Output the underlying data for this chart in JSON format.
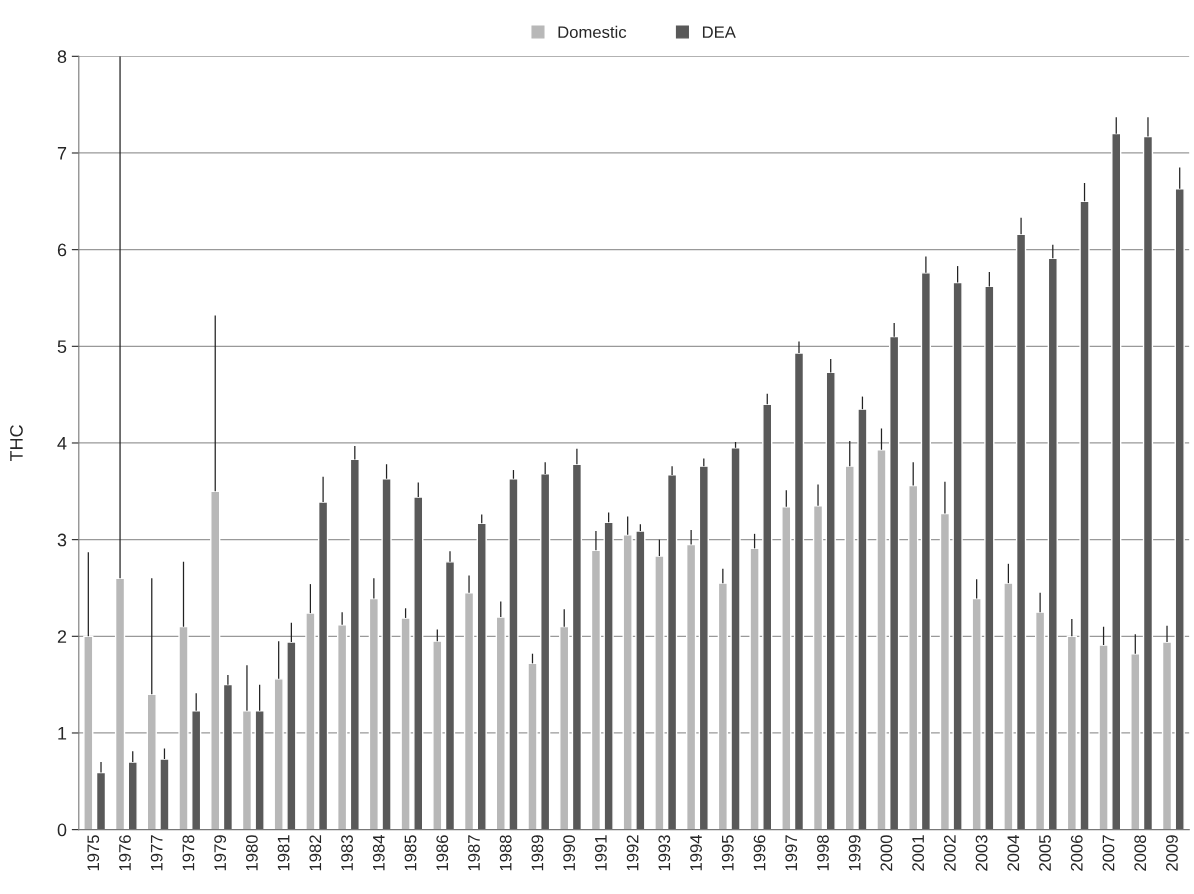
{
  "chart_data": {
    "type": "bar",
    "ylabel": "THC",
    "categories": [
      "1975",
      "1976",
      "1977",
      "1978",
      "1979",
      "1980",
      "1981",
      "1982",
      "1983",
      "1984",
      "1985",
      "1986",
      "1987",
      "1988",
      "1989",
      "1990",
      "1991",
      "1992",
      "1993",
      "1994",
      "1995",
      "1996",
      "1997",
      "1998",
      "1999",
      "2000",
      "2001",
      "2002",
      "2003",
      "2004",
      "2005",
      "2006",
      "2007",
      "2008",
      "2009"
    ],
    "series": [
      {
        "name": "Domestic",
        "color": "#b8b8b8",
        "values": [
          2.0,
          2.6,
          1.4,
          2.1,
          3.5,
          1.23,
          1.56,
          2.24,
          2.12,
          2.39,
          2.19,
          1.95,
          2.45,
          2.2,
          1.72,
          2.1,
          2.89,
          3.05,
          2.83,
          2.95,
          2.55,
          2.91,
          3.34,
          3.35,
          3.76,
          3.93,
          3.56,
          3.27,
          2.39,
          2.55,
          2.25,
          2.0,
          1.91,
          1.82,
          1.94
        ],
        "errors": [
          [
            2.0,
            2.87
          ],
          [
            2.6,
            8
          ],
          [
            1.4,
            2.6
          ],
          [
            2.1,
            2.77
          ],
          [
            3.5,
            5.32
          ],
          [
            1.23,
            1.7
          ],
          [
            1.56,
            1.95
          ],
          [
            2.24,
            2.54
          ],
          [
            2.12,
            2.25
          ],
          [
            2.39,
            2.6
          ],
          [
            2.19,
            2.29
          ],
          [
            1.95,
            2.07
          ],
          [
            2.45,
            2.63
          ],
          [
            2.2,
            2.36
          ],
          [
            1.72,
            1.82
          ],
          [
            2.1,
            2.28
          ],
          [
            2.89,
            3.09
          ],
          [
            3.05,
            3.24
          ],
          [
            2.83,
            3.0
          ],
          [
            2.95,
            3.1
          ],
          [
            2.55,
            2.7
          ],
          [
            2.91,
            3.06
          ],
          [
            3.34,
            3.51
          ],
          [
            3.35,
            3.57
          ],
          [
            3.76,
            4.02
          ],
          [
            3.93,
            4.15
          ],
          [
            3.56,
            3.8
          ],
          [
            3.27,
            3.6
          ],
          [
            2.39,
            2.59
          ],
          [
            2.55,
            2.75
          ],
          [
            2.25,
            2.45
          ],
          [
            2.0,
            2.18
          ],
          [
            1.91,
            2.1
          ],
          [
            1.82,
            2.02
          ],
          [
            1.94,
            2.11
          ]
        ]
      },
      {
        "name": "DEA",
        "color": "#595959",
        "values": [
          0.59,
          0.7,
          0.73,
          1.23,
          1.5,
          1.23,
          1.94,
          3.39,
          3.83,
          3.63,
          3.44,
          2.77,
          3.17,
          3.63,
          3.68,
          3.78,
          3.18,
          3.09,
          3.67,
          3.76,
          3.95,
          4.4,
          4.93,
          4.73,
          4.35,
          5.1,
          5.76,
          5.66,
          5.62,
          6.16,
          5.91,
          6.5,
          7.2,
          7.17,
          6.63
        ],
        "errors": [
          [
            0.59,
            0.7
          ],
          [
            0.7,
            0.81
          ],
          [
            0.73,
            0.84
          ],
          [
            1.23,
            1.41
          ],
          [
            1.5,
            1.6
          ],
          [
            1.23,
            1.5
          ],
          [
            1.94,
            2.14
          ],
          [
            3.39,
            3.65
          ],
          [
            3.83,
            3.97
          ],
          [
            3.63,
            3.78
          ],
          [
            3.44,
            3.59
          ],
          [
            2.77,
            2.88
          ],
          [
            3.17,
            3.26
          ],
          [
            3.63,
            3.72
          ],
          [
            3.68,
            3.8
          ],
          [
            3.78,
            3.94
          ],
          [
            3.18,
            3.28
          ],
          [
            3.09,
            3.16
          ],
          [
            3.67,
            3.76
          ],
          [
            3.76,
            3.84
          ],
          [
            3.95,
            4.01
          ],
          [
            4.4,
            4.51
          ],
          [
            4.93,
            5.05
          ],
          [
            4.73,
            4.87
          ],
          [
            4.35,
            4.48
          ],
          [
            5.1,
            5.24
          ],
          [
            5.76,
            5.93
          ],
          [
            5.66,
            5.83
          ],
          [
            5.62,
            5.77
          ],
          [
            6.16,
            6.33
          ],
          [
            5.91,
            6.05
          ],
          [
            6.5,
            6.69
          ],
          [
            7.2,
            7.37
          ],
          [
            7.17,
            7.37
          ],
          [
            6.63,
            6.85
          ]
        ]
      }
    ],
    "ylim": [
      0,
      8
    ],
    "yticks": [
      0,
      1,
      2,
      3,
      4,
      5,
      6,
      7,
      8
    ],
    "grid": "y",
    "legend": "top"
  }
}
